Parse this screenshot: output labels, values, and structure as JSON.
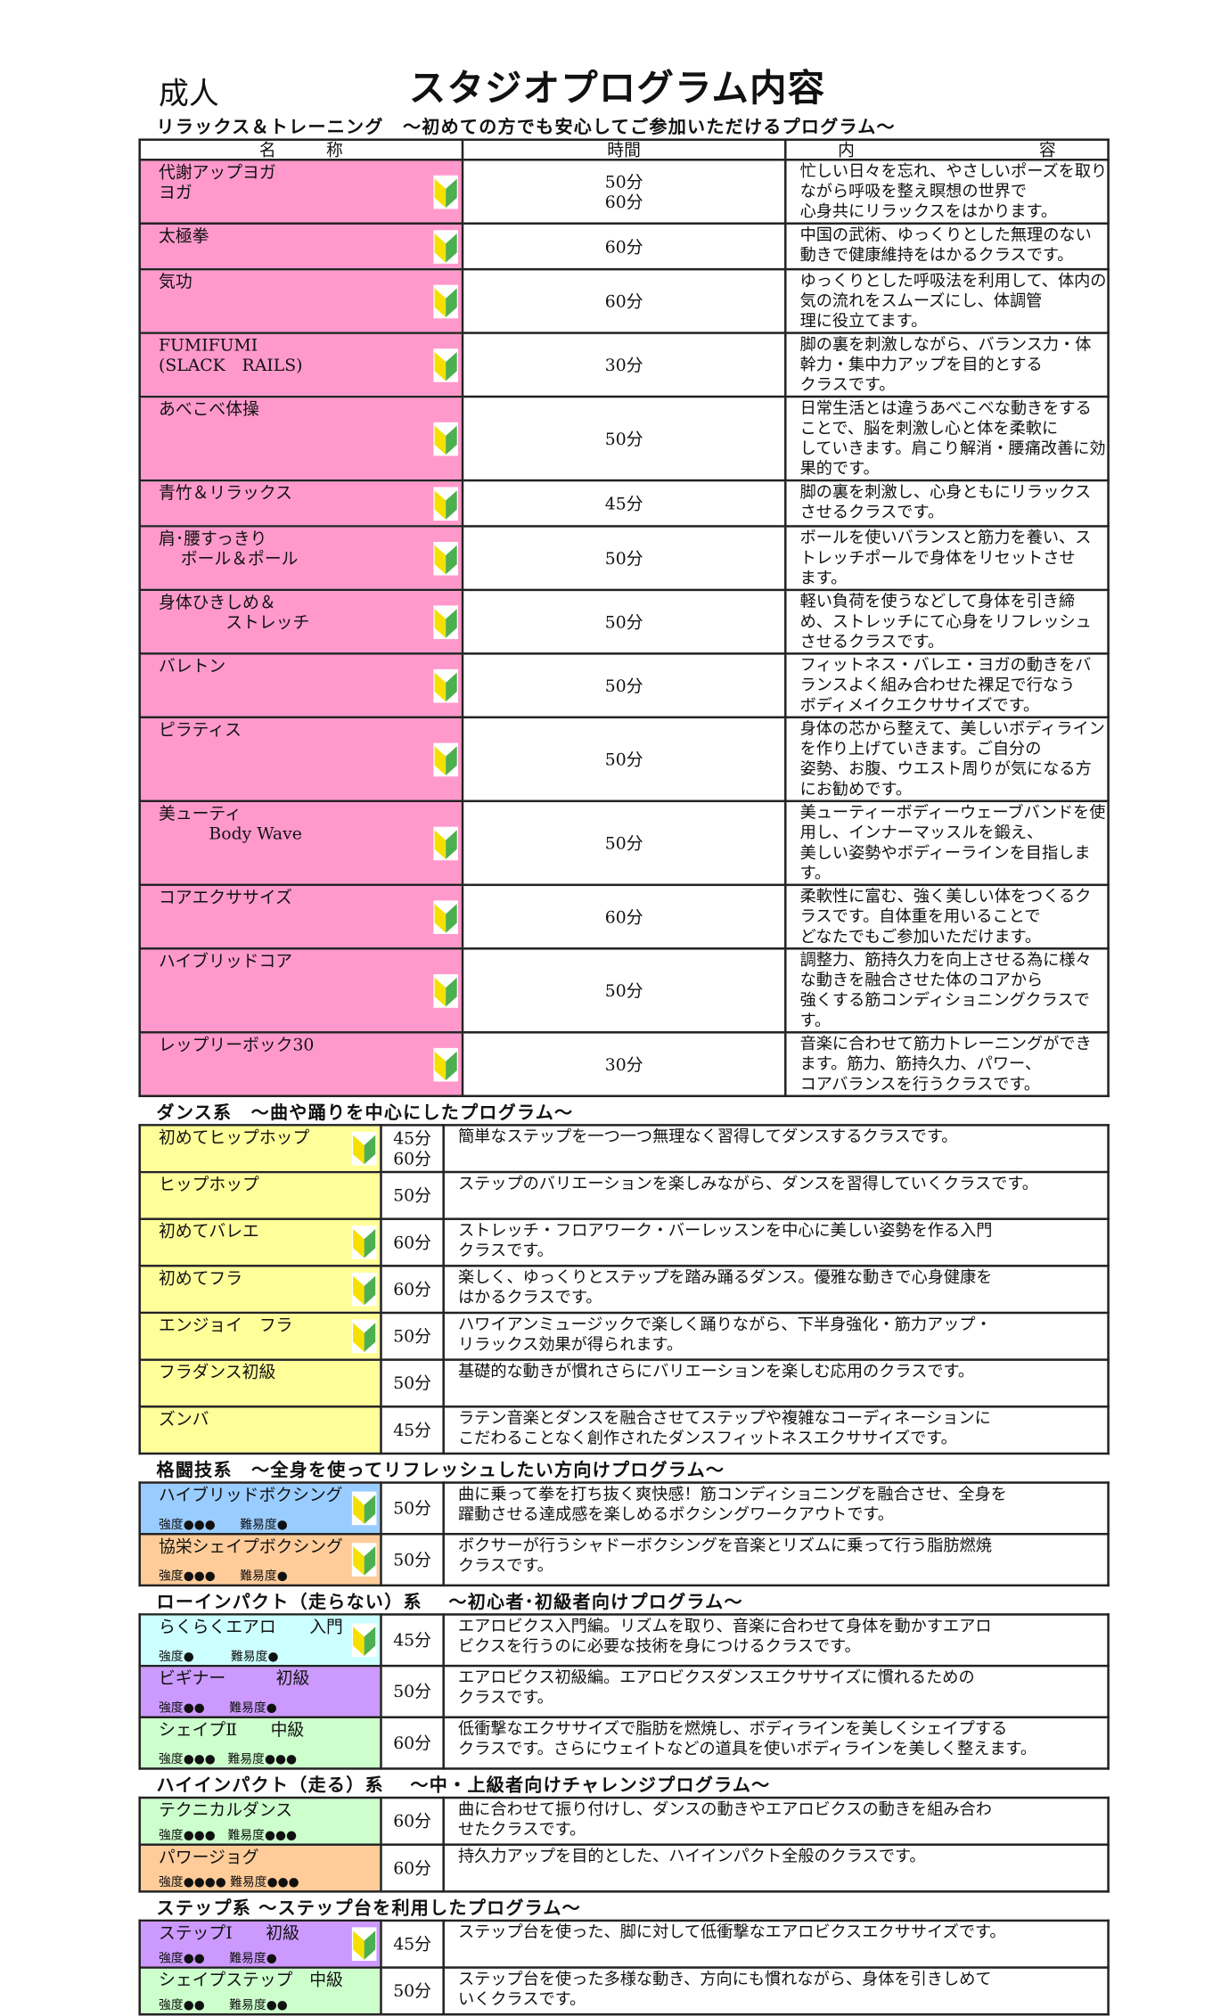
{
  "header": {
    "category": "成人",
    "title": "スタジオプログラム内容"
  },
  "table_headers": {
    "name": "名　　　称",
    "time": "時間",
    "content": "内　　　　　　　　　　　容"
  },
  "colors": {
    "pink": "#ff99cc",
    "yellow": "#ffff99",
    "blue": "#99ccff",
    "orange": "#ffcc99",
    "cyan": "#ccffff",
    "purple": "#cc99ff",
    "green": "#ccffcc",
    "beginner_mark_yellow": "#f5e000",
    "beginner_mark_green": "#4caf50"
  },
  "sections": [
    {
      "heading": "リラックス＆トレーニング　～初めての方でも安心してご参加いただけるプログラム～",
      "rows": [
        {
          "name": "代謝アップヨガ\nヨガ",
          "time": "50分\n60分",
          "desc": "忙しい日々を忘れ、やさしいポーズを取りながら呼吸を整え瞑想の世界で\n心身共にリラックスをはかります。",
          "color": "pink",
          "beginner": true
        },
        {
          "name": "太極拳",
          "time": "60分",
          "desc": "中国の武術、ゆっくりとした無理のない動きで健康維持をはかるクラスです。",
          "color": "pink",
          "beginner": true
        },
        {
          "name": "気功",
          "time": "60分",
          "desc": "ゆっくりとした呼吸法を利用して、体内の気の流れをスムーズにし、体調管\n理に役立てます。",
          "color": "pink",
          "beginner": true
        },
        {
          "name": "FUMIFUMI\n(SLACK　RAILS)",
          "time": "30分",
          "desc": "脚の裏を刺激しながら、バランス力・体幹力・集中力アップを目的とする\nクラスです。",
          "color": "pink",
          "beginner": true
        },
        {
          "name": "あべこべ体操",
          "time": "50分",
          "desc": "日常生活とは違うあべこべな動きをすることで、脳を刺激し心と体を柔軟に\nしていきます。肩こり解消・腰痛改善に効果的です。",
          "color": "pink",
          "beginner": true
        },
        {
          "name": "青竹＆リラックス",
          "time": "45分",
          "desc": "脚の裏を刺激し、心身ともにリラックスさせるクラスです。",
          "color": "pink",
          "beginner": true
        },
        {
          "name": "肩･腰すっきり\n　 ボール＆ポール",
          "time": "50分",
          "desc": "ボールを使いバランスと筋力を養い、ストレッチポールで身体をリセットさせ\nます。",
          "color": "pink",
          "beginner": true
        },
        {
          "name": "身体ひきしめ＆\n　　　　ストレッチ",
          "time": "50分",
          "desc": "軽い負荷を使うなどして身体を引き締め、ストレッチにて心身をリフレッシュ\nさせるクラスです。",
          "color": "pink",
          "beginner": true
        },
        {
          "name": "バレトン",
          "time": "50分",
          "desc": "フィットネス・バレエ・ヨガの動きをバランスよく組み合わせた裸足で行なう\nボディメイクエクササイズです。",
          "color": "pink",
          "beginner": true
        },
        {
          "name": "ピラティス",
          "time": "50分",
          "desc": "身体の芯から整えて、美しいボディラインを作り上げていきます。ご自分の\n姿勢、お腹、ウエスト周りが気になる方にお勧めです。",
          "color": "pink",
          "beginner": true
        },
        {
          "name": "美ューティ\n　　　Body Wave",
          "time": "50分",
          "desc": "美ューティーボディーウェーブバンドを使用し、インナーマッスルを鍛え、\n美しい姿勢やボディーラインを目指します。",
          "color": "pink",
          "beginner": true
        },
        {
          "name": "コアエクササイズ",
          "time": "60分",
          "desc": "柔軟性に富む、強く美しい体をつくるクラスです。自体重を用いることで\nどなたでもご参加いただけます。",
          "color": "pink",
          "beginner": true
        },
        {
          "name": "ハイブリッドコア",
          "time": "50分",
          "desc": "調整力、筋持久力を向上させる為に様々な動きを融合させた体のコアから\n強くする筋コンディショニングクラスです。",
          "color": "pink",
          "beginner": true
        },
        {
          "name": "レップリーボック30",
          "time": "30分",
          "desc": "音楽に合わせて筋力トレーニングができます。筋力、筋持久力、パワー、\nコアバランスを行うクラスです。",
          "color": "pink",
          "beginner": true
        }
      ]
    },
    {
      "heading": "ダンス系　～曲や踊りを中心にしたプログラム～",
      "rows": [
        {
          "name": "初めてヒップホップ",
          "time": "45分\n60分",
          "desc": "簡単なステップを一つ一つ無理なく習得してダンスするクラスです。",
          "color": "yellow",
          "beginner": true
        },
        {
          "name": "ヒップホップ",
          "time": "50分",
          "desc": "ステップのバリエーションを楽しみながら、ダンスを習得していくクラスです。",
          "color": "yellow",
          "beginner": false
        },
        {
          "name": "初めてバレエ",
          "time": "60分",
          "desc": "ストレッチ・フロアワーク・バーレッスンを中心に美しい姿勢を作る入門\nクラスです。",
          "color": "yellow",
          "beginner": true
        },
        {
          "name": "初めてフラ",
          "time": "60分",
          "desc": "楽しく、ゆっくりとステップを踏み踊るダンス。優雅な動きで心身健康を\nはかるクラスです。",
          "color": "yellow",
          "beginner": true
        },
        {
          "name": "エンジョイ　フラ",
          "time": "50分",
          "desc": "ハワイアンミュージックで楽しく踊りながら、下半身強化・筋力アップ・\nリラックス効果が得られます。",
          "color": "yellow",
          "beginner": true
        },
        {
          "name": "フラダンス初級",
          "time": "50分",
          "desc": "基礎的な動きが慣れさらにバリエーションを楽しむ応用のクラスです。",
          "color": "yellow",
          "beginner": false
        },
        {
          "name": "ズンバ",
          "time": "45分",
          "desc": "ラテン音楽とダンスを融合させてステップや複雑なコーディネーションに\nこだわることなく創作されたダンスフィットネスエクササイズです。",
          "color": "yellow",
          "beginner": false
        }
      ]
    },
    {
      "heading": "格闘技系　～全身を使ってリフレッシュしたい方向けプログラム～",
      "rows": [
        {
          "name": "ハイブリッドボクシング",
          "time": "50分",
          "desc": "曲に乗って拳を打ち抜く爽快感！筋コンディショニングを融合させ、全身を\n躍動させる達成感を楽しめるボクシングワークアウトです。",
          "color": "blue",
          "beginner": true,
          "levels": "強度●●●　　難易度●"
        },
        {
          "name": "協栄シェイプボクシング",
          "time": "50分",
          "desc": "ボクサーが行うシャドーボクシングを音楽とリズムに乗って行う脂肪燃焼\nクラスです。",
          "color": "orange",
          "beginner": true,
          "levels": "強度●●●　　難易度●"
        }
      ]
    },
    {
      "heading": "ローインパクト（走らない）系　 ～初心者･初級者向けプログラム～",
      "rows": [
        {
          "name": "らくらくエアロ　　入門",
          "time": "45分",
          "desc": "エアロビクス入門編。リズムを取り、音楽に合わせて身体を動かすエアロ\nビクスを行うのに必要な技術を身につけるクラスです。",
          "color": "cyan",
          "beginner": true,
          "levels": "強度●　　　難易度●"
        },
        {
          "name": "ビギナー　　　初級",
          "time": "50分",
          "desc": "エアロビクス初級編。エアロビクスダンスエクササイズに慣れるための\nクラスです。",
          "color": "purple",
          "beginner": false,
          "levels": "強度●●　　難易度●"
        },
        {
          "name": "シェイプⅡ　　中級",
          "time": "60分",
          "desc": "低衝撃なエクササイズで脂肪を燃焼し、ボディラインを美しくシェイプする\nクラスです。さらにウェイトなどの道具を使いボディラインを美しく整えます。",
          "color": "green",
          "beginner": false,
          "levels": "強度●●●　難易度●●●"
        }
      ]
    },
    {
      "heading": "ハイインパクト（走る）系　 ～中・上級者向けチャレンジプログラム～",
      "rows": [
        {
          "name": "テクニカルダンス",
          "time": "60分",
          "desc": "曲に合わせて振り付けし、ダンスの動きやエアロビクスの動きを組み合わ\nせたクラスです。",
          "color": "green",
          "beginner": false,
          "levels": "強度●●●　難易度●●●"
        },
        {
          "name": "パワージョグ",
          "time": "60分",
          "desc": "持久力アップを目的とした、ハイインパクト全般のクラスです。",
          "color": "orange",
          "beginner": false,
          "levels": "強度●●●● 難易度●●●"
        }
      ]
    },
    {
      "heading": "ステップ系 ～ステップ台を利用したプログラム～",
      "rows": [
        {
          "name": "ステップⅠ　　初級",
          "time": "45分",
          "desc": "ステップ台を使った、脚に対して低衝撃なエアロビクスエクササイズです。",
          "color": "purple",
          "beginner": true,
          "levels": "強度●●　　難易度●"
        },
        {
          "name": "シェイプステップ　中級",
          "time": "50分",
          "desc": "ステップ台を使った多様な動き、方向にも慣れながら、身体を引きしめて\nいくクラスです。",
          "color": "green",
          "beginner": false,
          "levels": "強度●●　　難易度●●"
        }
      ]
    }
  ]
}
